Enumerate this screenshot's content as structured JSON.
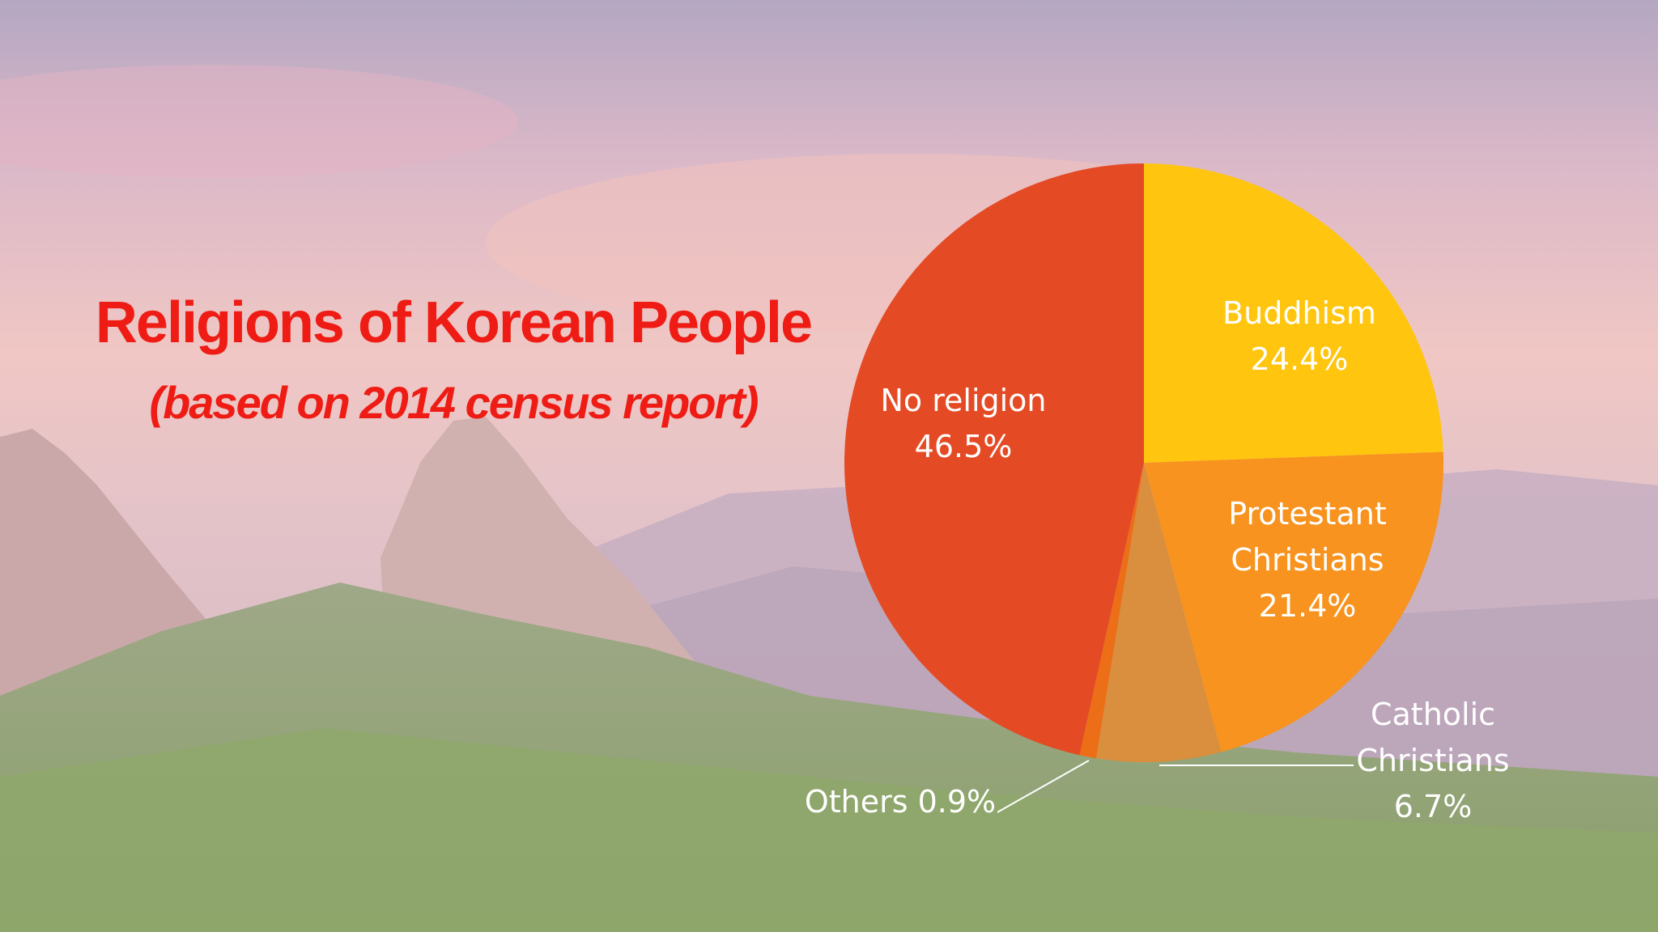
{
  "slide": {
    "title": "Religions  of Korean People",
    "subtitle": "(based on 2014 census report)"
  },
  "chart_data": {
    "type": "pie",
    "title": "Religions  of Korean People",
    "subtitle": "(based on 2014 census report)",
    "slices": [
      {
        "name": "Buddhism",
        "lines": [
          "Buddhism",
          "24.4%"
        ],
        "value": 24.4,
        "color": "#ffc50f"
      },
      {
        "name": "Protestant Christians",
        "lines": [
          "Protestant",
          "Christians",
          "21.4%"
        ],
        "value": 21.4,
        "color": "#f7931e"
      },
      {
        "name": "Catholic Christians",
        "lines": [
          "Catholic",
          "Christians",
          "6.7%"
        ],
        "value": 6.7,
        "color": "#d98f3d"
      },
      {
        "name": "Others",
        "lines": [
          "Others 0.9%"
        ],
        "value": 0.9,
        "color": "#ec6e17"
      },
      {
        "name": "No religion",
        "lines": [
          "No religion",
          "46.5%"
        ],
        "value": 46.5,
        "color": "#e44a24"
      }
    ]
  }
}
